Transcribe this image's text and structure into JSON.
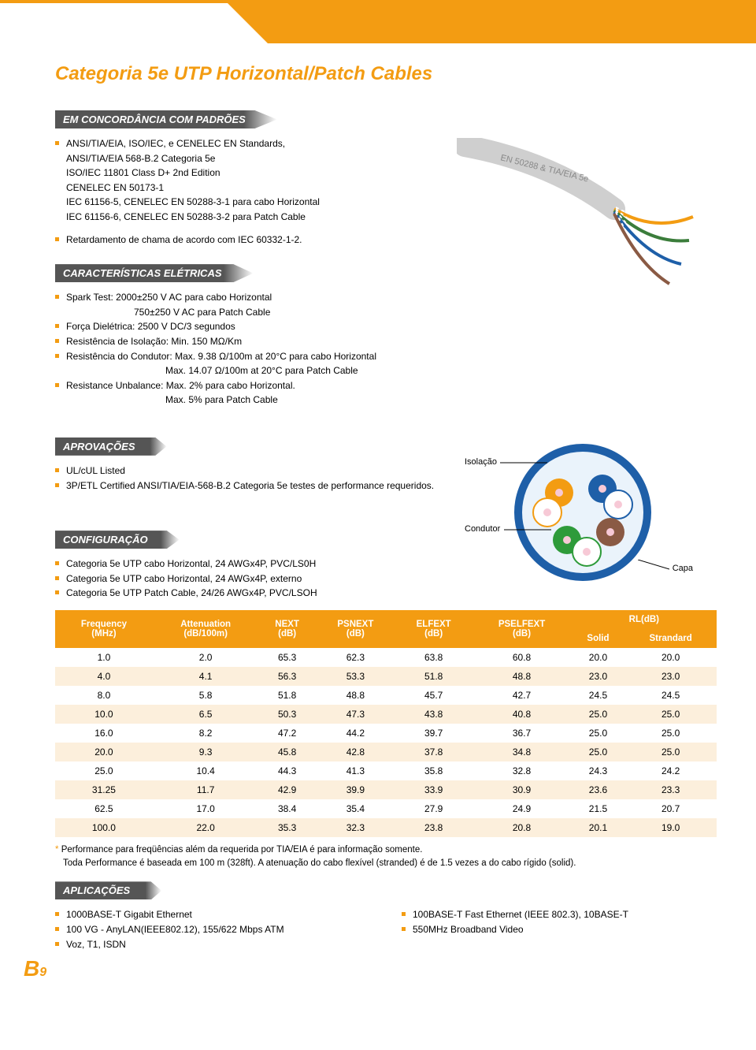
{
  "colors": {
    "accent": "#f39c12",
    "headerGrad": "#555555",
    "tableStripe": "#fcefdc",
    "tableHeaderText": "#ffffff"
  },
  "title": "Categoria 5e UTP Horizontal/Patch Cables",
  "sections": {
    "compliance": {
      "header": "EM CONCORDÂNCIA COM PADRÕES"
    },
    "electrical": {
      "header": "CARACTERÍSTICAS ELÉTRICAS"
    },
    "approvals": {
      "header": "APROVAÇÕES"
    },
    "config": {
      "header": "CONFIGURAÇÃO"
    },
    "apps": {
      "header": "APLICAÇÕES"
    }
  },
  "compliance_items": [
    "ANSI/TIA/EIA, ISO/IEC, e CENELEC EN Standards,",
    "ANSI/TIA/EIA 568-B.2 Categoria 5e",
    "ISO/IEC 11801 Class D+ 2nd Edition",
    "CENELEC EN 50173-1",
    "IEC 61156-5, CENELEC EN 50288-3-1 para cabo Horizontal",
    "IEC 61156-6, CENELEC EN 50288-3-2 para Patch Cable",
    "Retardamento de chama de acordo com IEC 60332-1-2."
  ],
  "electrical_items": [
    "Spark Test: 2000±250 V AC para cabo Horizontal",
    "750±250 V AC para Patch Cable",
    "Força Dielétrica:  2500 V DC/3 segundos",
    "Resistência de Isolação: Min. 150 MΩ/Km",
    "Resistência do Condutor: Max. 9.38 Ω/100m at 20°C para cabo Horizontal",
    "Max. 14.07 Ω/100m at 20°C para Patch Cable",
    "Resistance Unbalance: Max. 2% para cabo Horizontal.",
    "Max. 5% para Patch Cable"
  ],
  "approval_items": [
    "UL/cUL Listed",
    "3P/ETL Certified ANSI/TIA/EIA-568-B.2 Categoria 5e testes de performance requeridos."
  ],
  "config_items": [
    "Categoria 5e UTP cabo Horizontal, 24 AWGx4P, PVC/LS0H",
    "Categoria 5e UTP cabo Horizontal, 24 AWGx4P, externo",
    "Categoria 5e UTP Patch Cable, 24/26 AWGx4P, PVC/LSOH"
  ],
  "diagram_labels": {
    "insulation": "Isolação",
    "conductor": "Condutor",
    "jacket": "Capa"
  },
  "table": {
    "headers": {
      "freq": "Frequency\n(MHz)",
      "att": "Attenuation\n(dB/100m)",
      "next": "NEXT\n(dB)",
      "psnext": "PSNEXT\n(dB)",
      "elfext": "ELFEXT\n(dB)",
      "pselfext": "PSELFEXT\n(dB)",
      "rl": "RL(dB)",
      "solid": "Solid",
      "stranded": "Strandard"
    },
    "rows": [
      [
        "1.0",
        "2.0",
        "65.3",
        "62.3",
        "63.8",
        "60.8",
        "20.0",
        "20.0"
      ],
      [
        "4.0",
        "4.1",
        "56.3",
        "53.3",
        "51.8",
        "48.8",
        "23.0",
        "23.0"
      ],
      [
        "8.0",
        "5.8",
        "51.8",
        "48.8",
        "45.7",
        "42.7",
        "24.5",
        "24.5"
      ],
      [
        "10.0",
        "6.5",
        "50.3",
        "47.3",
        "43.8",
        "40.8",
        "25.0",
        "25.0"
      ],
      [
        "16.0",
        "8.2",
        "47.2",
        "44.2",
        "39.7",
        "36.7",
        "25.0",
        "25.0"
      ],
      [
        "20.0",
        "9.3",
        "45.8",
        "42.8",
        "37.8",
        "34.8",
        "25.0",
        "25.0"
      ],
      [
        "25.0",
        "10.4",
        "44.3",
        "41.3",
        "35.8",
        "32.8",
        "24.3",
        "24.2"
      ],
      [
        "31.25",
        "11.7",
        "42.9",
        "39.9",
        "33.9",
        "30.9",
        "23.6",
        "23.3"
      ],
      [
        "62.5",
        "17.0",
        "38.4",
        "35.4",
        "27.9",
        "24.9",
        "21.5",
        "20.7"
      ],
      [
        "100.0",
        "22.0",
        "35.3",
        "32.3",
        "23.8",
        "20.8",
        "20.1",
        "19.0"
      ]
    ]
  },
  "footnote_marker": "*",
  "footnote_text": "Performance para freqüências além da requerida por TIA/EIA é para informação somente.",
  "footnote_text2": "Toda Performance é baseada em 100 m (328ft). A atenuação do cabo flexível (stranded) é de 1.5 vezes a do cabo rígido (solid).",
  "apps_left": [
    "1000BASE-T Gigabit Ethernet",
    "100 VG - AnyLAN(IEEE802.12), 155/622 Mbps ATM",
    "Voz, T1, ISDN"
  ],
  "apps_right": [
    "100BASE-T Fast Ethernet (IEEE 802.3), 10BASE-T",
    "550MHz Broadband Video"
  ],
  "page_number": {
    "prefix": "B",
    "num": "9"
  }
}
